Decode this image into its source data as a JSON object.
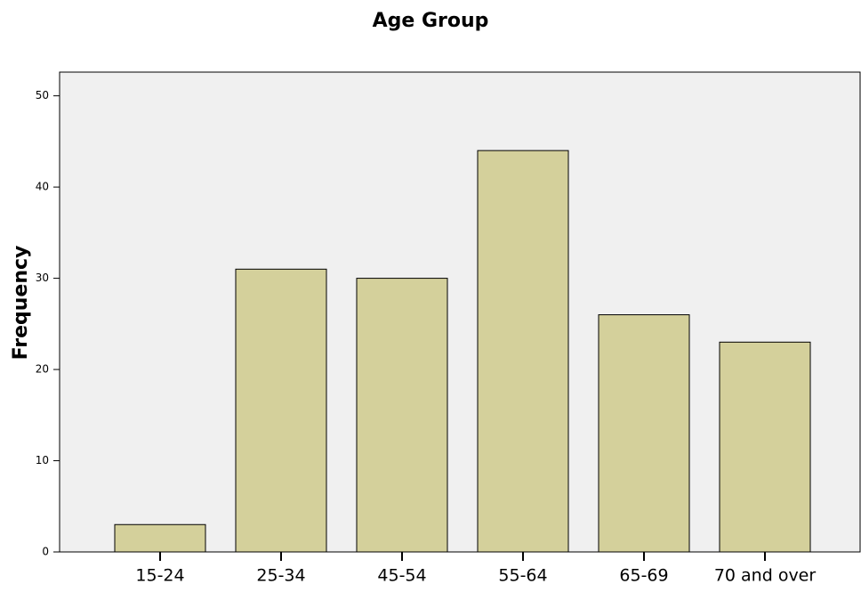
{
  "chart_data": {
    "type": "bar",
    "title": "Age Group",
    "y_label": "Frequency",
    "categories": [
      "15-24",
      "25-34",
      "45-54",
      "55-64",
      "65-69",
      "70 and over"
    ],
    "values": [
      3,
      31,
      30,
      44,
      26,
      23
    ],
    "color": "#d4d09b",
    "ylim": [
      0,
      52.6
    ],
    "yticks": [
      0,
      10,
      20,
      30,
      40,
      50
    ],
    "grid": false
  }
}
